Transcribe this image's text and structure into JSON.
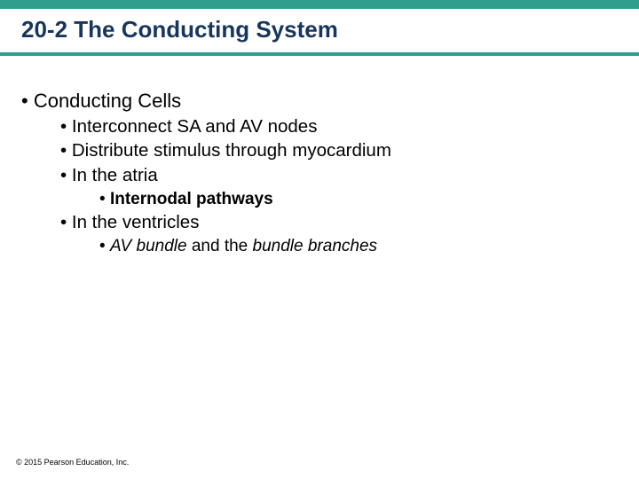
{
  "colors": {
    "top_bar": "#2f9e8f",
    "under_bar": "#2f9e8f",
    "title_text": "#17365d",
    "body_text": "#000000",
    "background": "#ffffff"
  },
  "title": "20-2 The Conducting System",
  "bullets": {
    "l1_0": "Conducting Cells",
    "l2_0": "Interconnect SA and AV nodes",
    "l2_1": "Distribute stimulus through myocardium",
    "l2_2": "In the atria",
    "l3_0": "Internodal pathways",
    "l2_3": "In the ventricles",
    "l3_1a": "AV bundle",
    "l3_1b": " and the ",
    "l3_1c": "bundle branches"
  },
  "footer": "© 2015 Pearson Education, Inc."
}
